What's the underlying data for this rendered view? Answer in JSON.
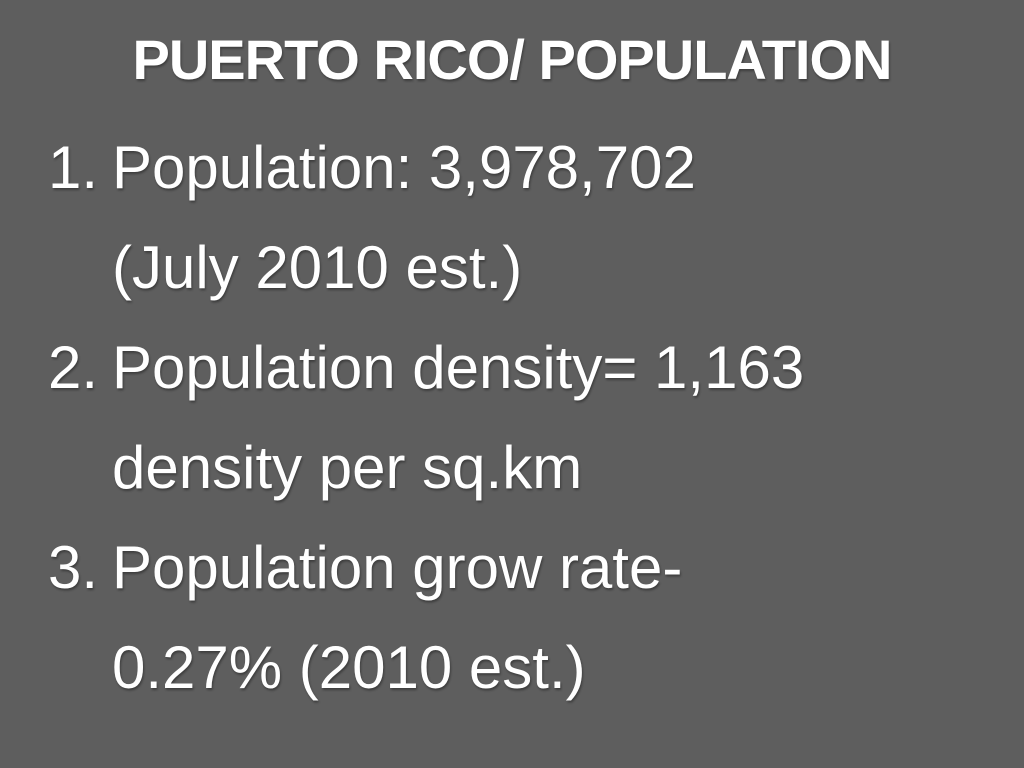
{
  "title": "PUERTO RICO/ POPULATION",
  "items": [
    {
      "marker": "1.",
      "lines": [
        "Population: 3,978,702",
        "(July 2010 est.)"
      ]
    },
    {
      "marker": "2.",
      "lines": [
        "Population density= 1,163",
        "density per sq.km"
      ]
    },
    {
      "marker": "3.",
      "lines": [
        "Population grow rate-",
        "0.27% (2010 est.)"
      ]
    }
  ]
}
